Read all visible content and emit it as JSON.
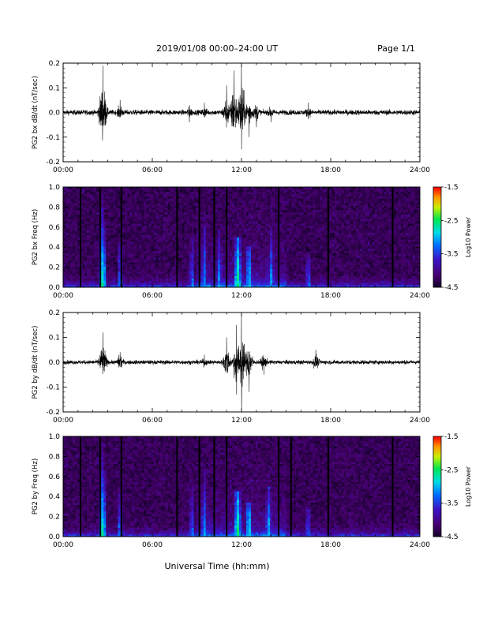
{
  "header": {
    "title": "2019/01/08  00:00–24:00 UT",
    "page": "Page 1/1"
  },
  "xaxis": {
    "label": "Universal Time (hh:mm)",
    "ticks": [
      "00:00",
      "06:00",
      "12:00",
      "18:00",
      "24:00"
    ]
  },
  "chart_data": [
    {
      "type": "line",
      "title": "",
      "ylabel": "PG2 bx dB/dt (nT/sec)",
      "xlabel": "",
      "xlim": [
        "00:00",
        "24:00"
      ],
      "ylim": [
        -0.2,
        0.2
      ],
      "yticks": [
        "0.2",
        "0.1",
        "0.0",
        "-0.1",
        "-0.2"
      ],
      "xticks": [
        "00:00",
        "06:00",
        "12:00",
        "18:00",
        "24:00"
      ],
      "events": [
        {
          "t": "02:40",
          "peak": 0.19,
          "trough": -0.13
        },
        {
          "t": "02:35",
          "peak": 0.06,
          "trough": -0.03
        },
        {
          "t": "03:50",
          "peak": 0.05,
          "trough": -0.05
        },
        {
          "t": "08:30",
          "peak": 0.03,
          "trough": -0.04
        },
        {
          "t": "09:30",
          "peak": 0.04,
          "trough": -0.04
        },
        {
          "t": "11:00",
          "peak": 0.11,
          "trough": -0.11
        },
        {
          "t": "11:30",
          "peak": 0.17,
          "trough": -0.14
        },
        {
          "t": "12:00",
          "peak": 0.2,
          "trough": -0.15
        },
        {
          "t": "12:30",
          "peak": 0.1,
          "trough": -0.1
        },
        {
          "t": "13:00",
          "peak": 0.06,
          "trough": -0.06
        },
        {
          "t": "14:00",
          "peak": 0.04,
          "trough": -0.04
        },
        {
          "t": "16:30",
          "peak": 0.04,
          "trough": -0.04
        }
      ],
      "baseline_noise": 0.01
    },
    {
      "type": "heatmap",
      "title": "",
      "ylabel": "PG2 bx Freq (Hz)",
      "xlabel": "",
      "xlim": [
        "00:00",
        "24:00"
      ],
      "ylim": [
        0.0,
        1.0
      ],
      "yticks": [
        "1.0",
        "0.8",
        "0.6",
        "0.4",
        "0.2",
        "0.0"
      ],
      "xticks": [
        "00:00",
        "06:00",
        "12:00",
        "18:00",
        "24:00"
      ],
      "colorbar": {
        "label": "Log10 Power",
        "range": [
          -4.5,
          -1.5
        ],
        "ticks": [
          "-1.5",
          "-2.5",
          "-3.5",
          "-4.5"
        ]
      },
      "gaps": [
        "01:10",
        "02:30",
        "03:55",
        "07:40",
        "09:10",
        "10:10",
        "11:00",
        "14:30",
        "17:50",
        "22:10"
      ],
      "activity": [
        {
          "t": "02:40",
          "fmax": 0.95,
          "level": -2.6
        },
        {
          "t": "03:50",
          "fmax": 0.5,
          "level": -3.2
        },
        {
          "t": "08:40",
          "fmax": 0.9,
          "level": -3.2
        },
        {
          "t": "09:30",
          "fmax": 0.8,
          "level": -3.0
        },
        {
          "t": "10:30",
          "fmax": 0.6,
          "level": -3.0
        },
        {
          "t": "11:45",
          "fmax": 0.5,
          "level": -2.5
        },
        {
          "t": "12:30",
          "fmax": 0.4,
          "level": -2.8
        },
        {
          "t": "14:00",
          "fmax": 0.6,
          "level": -3.0
        },
        {
          "t": "16:30",
          "fmax": 0.35,
          "level": -3.3
        }
      ]
    },
    {
      "type": "line",
      "title": "",
      "ylabel": "PG2 by dB/dt (nT/sec)",
      "xlabel": "",
      "xlim": [
        "00:00",
        "24:00"
      ],
      "ylim": [
        -0.2,
        0.2
      ],
      "yticks": [
        "0.2",
        "0.1",
        "0.0",
        "-0.1",
        "-0.2"
      ],
      "xticks": [
        "00:00",
        "06:00",
        "12:00",
        "18:00",
        "24:00"
      ],
      "events": [
        {
          "t": "02:40",
          "peak": 0.12,
          "trough": -0.12
        },
        {
          "t": "03:50",
          "peak": 0.04,
          "trough": -0.05
        },
        {
          "t": "09:30",
          "peak": 0.03,
          "trough": -0.03
        },
        {
          "t": "11:00",
          "peak": 0.1,
          "trough": -0.1
        },
        {
          "t": "11:40",
          "peak": 0.15,
          "trough": -0.13
        },
        {
          "t": "12:00",
          "peak": 0.2,
          "trough": -0.2
        },
        {
          "t": "12:30",
          "peak": 0.12,
          "trough": -0.12
        },
        {
          "t": "13:30",
          "peak": 0.05,
          "trough": -0.05
        },
        {
          "t": "17:00",
          "peak": 0.05,
          "trough": -0.05
        }
      ],
      "baseline_noise": 0.008
    },
    {
      "type": "heatmap",
      "title": "",
      "ylabel": "PG2 by Freq (Hz)",
      "xlabel": "",
      "xlim": [
        "00:00",
        "24:00"
      ],
      "ylim": [
        0.0,
        1.0
      ],
      "yticks": [
        "1.0",
        "0.8",
        "0.6",
        "0.4",
        "0.2",
        "0.0"
      ],
      "xticks": [
        "00:00",
        "06:00",
        "12:00",
        "18:00",
        "24:00"
      ],
      "colorbar": {
        "label": "Log10 Power",
        "range": [
          -4.5,
          -1.5
        ],
        "ticks": [
          "-1.5",
          "-2.5",
          "-3.5",
          "-4.5"
        ]
      },
      "gaps": [
        "01:10",
        "02:30",
        "03:55",
        "07:40",
        "09:10",
        "10:10",
        "11:00",
        "14:30",
        "15:20",
        "17:50",
        "22:10"
      ],
      "activity": [
        {
          "t": "02:40",
          "fmax": 0.95,
          "level": -2.6
        },
        {
          "t": "03:50",
          "fmax": 0.45,
          "level": -3.2
        },
        {
          "t": "08:40",
          "fmax": 0.8,
          "level": -3.2
        },
        {
          "t": "09:30",
          "fmax": 0.7,
          "level": -3.0
        },
        {
          "t": "11:45",
          "fmax": 0.45,
          "level": -2.5
        },
        {
          "t": "12:30",
          "fmax": 0.35,
          "level": -2.8
        },
        {
          "t": "13:50",
          "fmax": 0.5,
          "level": -2.9
        },
        {
          "t": "16:30",
          "fmax": 0.3,
          "level": -3.3
        }
      ]
    }
  ]
}
